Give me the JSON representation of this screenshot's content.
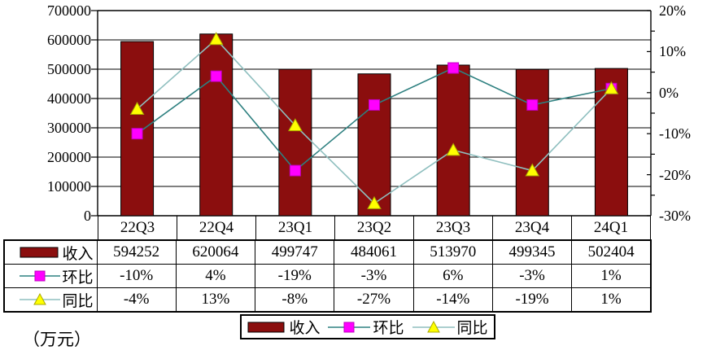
{
  "unit_label": "（万元）",
  "colors": {
    "bar": "#8B0E0E",
    "bar_border": "#000000",
    "huanbi_line": "#2E8080",
    "huanbi_marker": "#FF00FF",
    "huanbi_marker_border": "#C000C0",
    "tongbi_line": "#8FBFBF",
    "tongbi_marker": "#FFFF00",
    "tongbi_marker_border": "#A8A800",
    "grid": "#000000",
    "text": "#000000"
  },
  "chart_data": {
    "type": "bar",
    "title": "",
    "categories": [
      "22Q3",
      "22Q4",
      "23Q1",
      "23Q2",
      "23Q3",
      "23Q4",
      "24Q1"
    ],
    "series": [
      {
        "name": "收入",
        "chart_type": "bar",
        "axis": "left",
        "values": [
          594252,
          620064,
          499747,
          484061,
          513970,
          499345,
          502404
        ]
      },
      {
        "name": "环比",
        "chart_type": "line",
        "axis": "right",
        "marker": "square",
        "values": [
          -10,
          4,
          -19,
          -3,
          6,
          -3,
          1
        ],
        "labels": [
          "-10%",
          "4%",
          "-19%",
          "-3%",
          "6%",
          "-3%",
          "1%"
        ]
      },
      {
        "name": "同比",
        "chart_type": "line",
        "axis": "right",
        "marker": "triangle",
        "values": [
          -4,
          13,
          -8,
          -27,
          -14,
          -19,
          1
        ],
        "labels": [
          "-4%",
          "13%",
          "-8%",
          "-27%",
          "-14%",
          "-19%",
          "1%"
        ]
      }
    ],
    "left_axis": {
      "min": 0,
      "max": 700000,
      "step": 100000,
      "tick_labels": [
        "700000",
        "600000",
        "500000",
        "400000",
        "300000",
        "200000",
        "100000",
        "0"
      ]
    },
    "right_axis": {
      "min": -30,
      "max": 20,
      "major_step": 10,
      "minor_step": 5,
      "tick_labels": [
        "20%",
        "10%",
        "0%",
        "-10%",
        "-20%",
        "-30%"
      ]
    },
    "grid": true,
    "legend_position": "bottom",
    "unit": "万元"
  },
  "table": {
    "row_headers": [
      "收入",
      "环比",
      "同比"
    ],
    "columns": [
      "22Q3",
      "22Q4",
      "23Q1",
      "23Q2",
      "23Q3",
      "23Q4",
      "24Q1"
    ],
    "rows": [
      [
        "594252",
        "620064",
        "499747",
        "484061",
        "513970",
        "499345",
        "502404"
      ],
      [
        "-10%",
        "4%",
        "-19%",
        "-3%",
        "6%",
        "-3%",
        "1%"
      ],
      [
        "-4%",
        "13%",
        "-8%",
        "-27%",
        "-14%",
        "-19%",
        "1%"
      ]
    ]
  },
  "legend": {
    "items": [
      {
        "label": "收入",
        "key": "bar"
      },
      {
        "label": "环比",
        "key": "square"
      },
      {
        "label": "同比",
        "key": "triangle"
      }
    ]
  }
}
